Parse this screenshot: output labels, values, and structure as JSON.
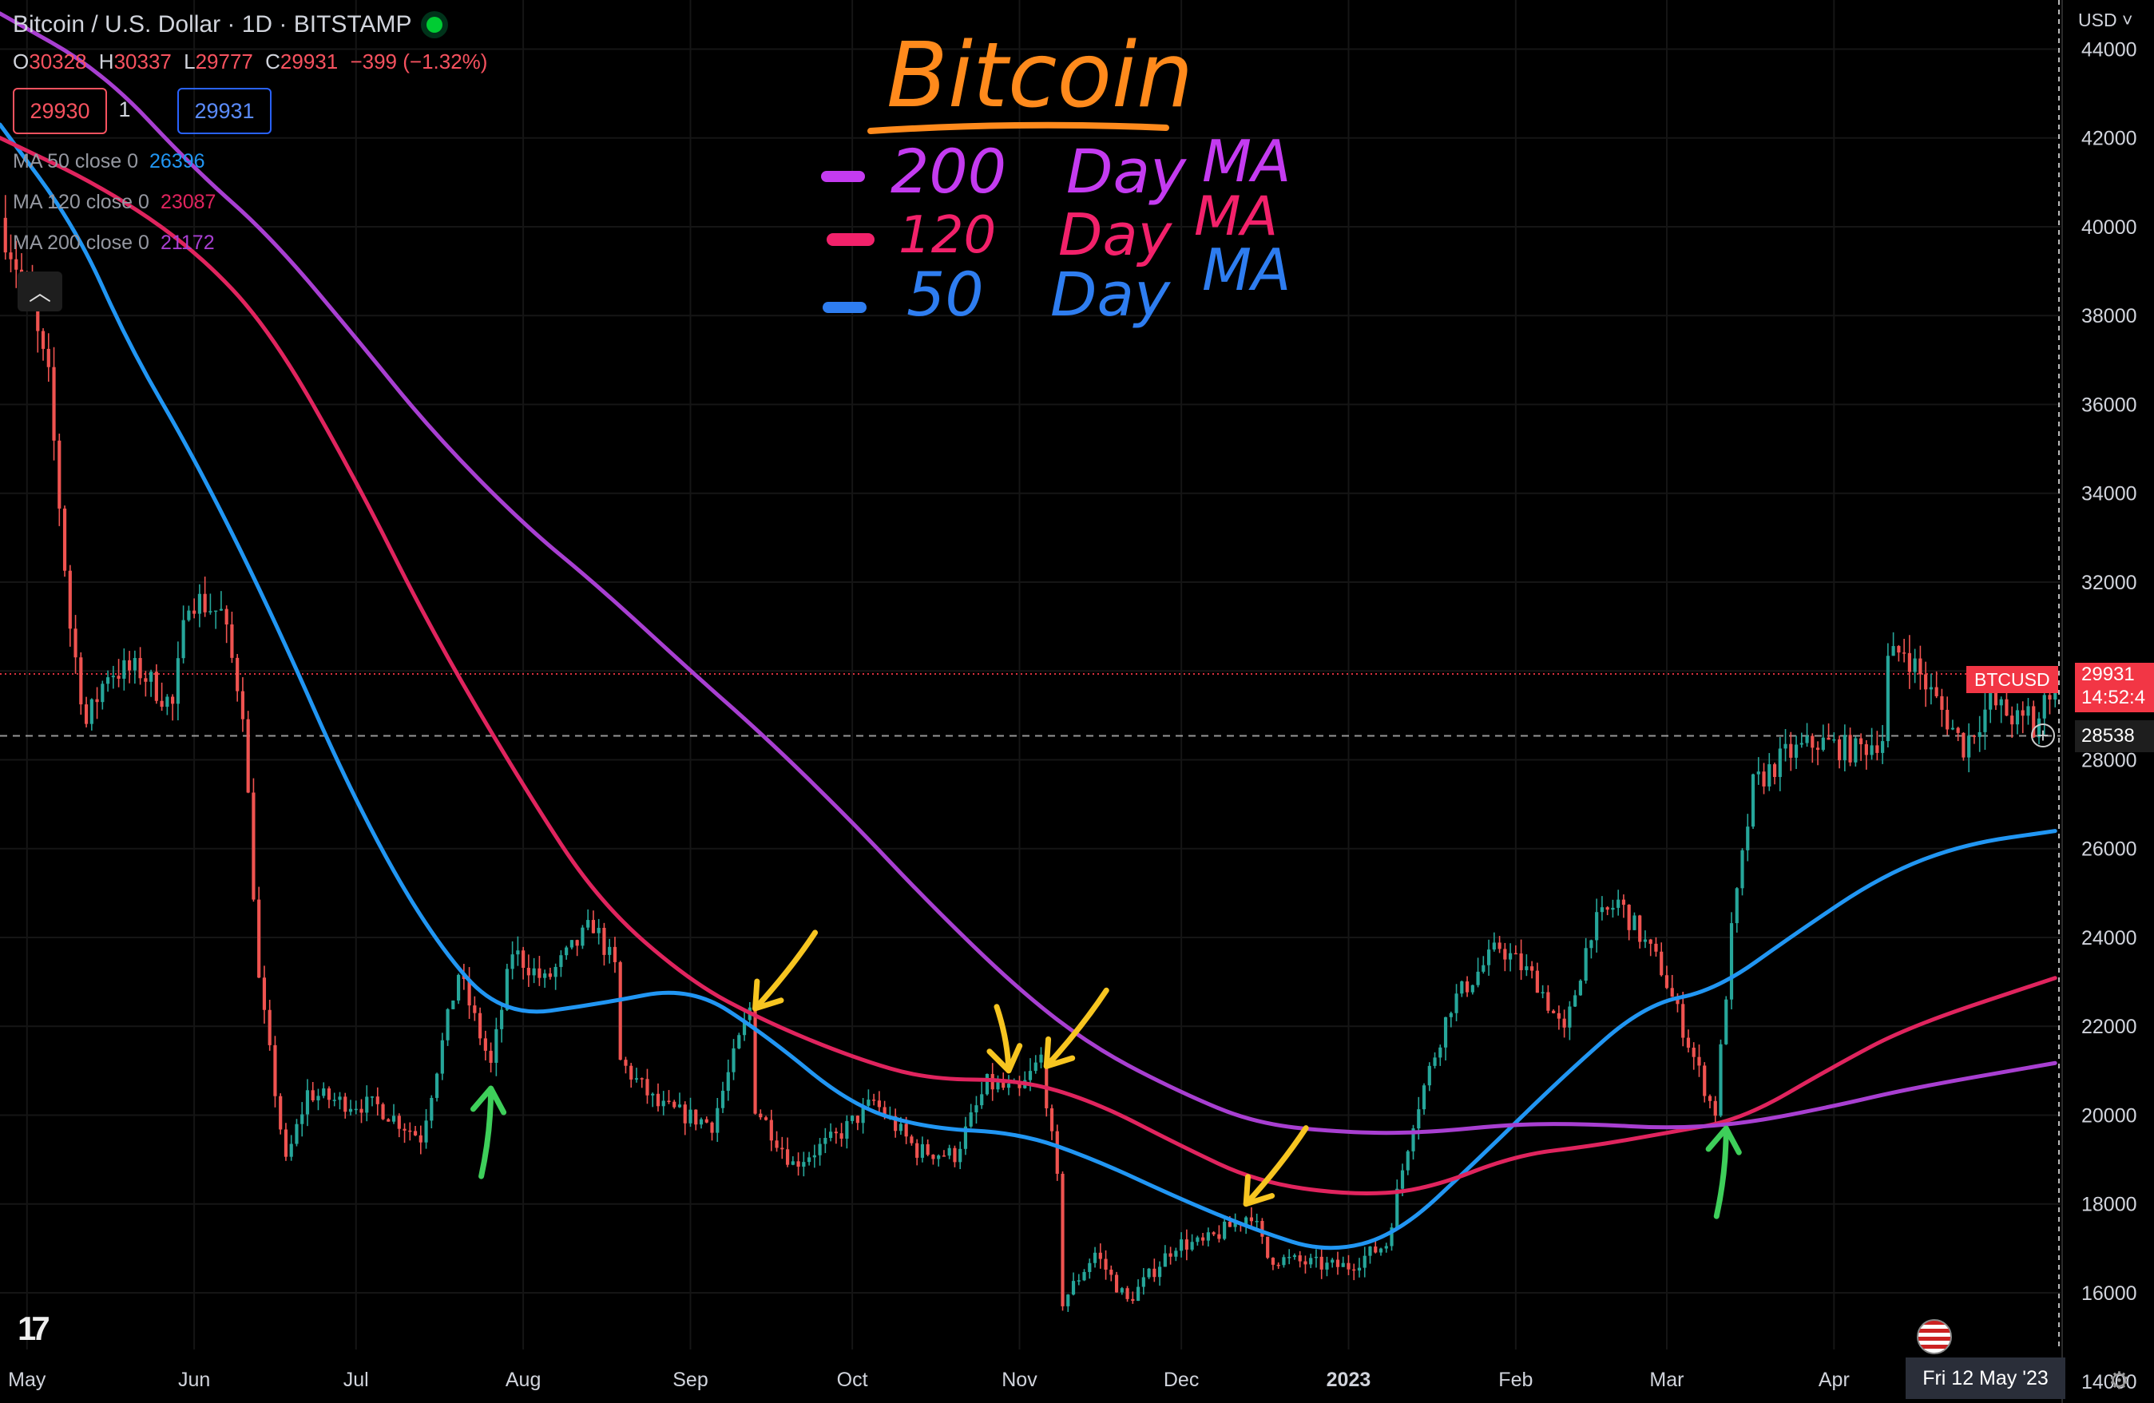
{
  "header": {
    "symbol_title": "Bitcoin / U.S. Dollar · 1D · BITSTAMP",
    "ohlc": {
      "o_label": "O",
      "o": "30328",
      "h_label": "H",
      "h": "30337",
      "l_label": "L",
      "l": "29777",
      "c_label": "C",
      "c": "29931",
      "change": "−399 (−1.32%)"
    },
    "bid": "29930",
    "qty": "1",
    "ask": "29931",
    "indicators": [
      {
        "label": "MA 50 close 0",
        "value": "26396",
        "color": "#2196f3"
      },
      {
        "label": "MA 120 close 0",
        "value": "23087",
        "color": "#e91e63"
      },
      {
        "label": "MA 200 close 0",
        "value": "21172",
        "color": "#9c27b0"
      }
    ],
    "collapse_icon": "chevron-up-icon"
  },
  "annotations": {
    "title": "Bitcoin",
    "legend": [
      {
        "period": "200",
        "word": "Day",
        "ma": "MA",
        "color": "#c43bf0"
      },
      {
        "period": "120",
        "word": "Day",
        "ma": "MA",
        "color": "#f2216a"
      },
      {
        "period": "50",
        "word": "Day",
        "ma": "MA",
        "color": "#2e7df0"
      }
    ],
    "colors": {
      "title": "#ff8a1c",
      "yellow_arrow": "#f7c520",
      "green_arrow": "#3ecf5a"
    }
  },
  "price_scale": {
    "currency": "USD",
    "currency_icon": "chevron-down-icon",
    "last_symbol": "BTCUSD",
    "last_price": "29931",
    "countdown": "14:52:4",
    "crosshair_price": "28538",
    "crosshair_icon": "plus-circle-icon"
  },
  "time_scale": {
    "crosshair_date": "Fri 12 May '23",
    "settings_icon": "gear-icon",
    "flag_icon": "us-flag-icon"
  },
  "colors": {
    "up": "#26a69a",
    "down": "#ef5350",
    "ma50": "#2196f3",
    "ma120": "#e0245e",
    "ma200": "#a83fd1",
    "bg": "#000000"
  },
  "chart_data": {
    "type": "candlestick",
    "x_unit": "date",
    "y_unit": "USD",
    "ylim": [
      13500,
      45500
    ],
    "y_ticks": [
      14000,
      16000,
      18000,
      20000,
      22000,
      24000,
      26000,
      28000,
      30000,
      32000,
      34000,
      36000,
      38000,
      40000,
      42000,
      44000
    ],
    "x_ticks": [
      {
        "date": "2022-05-01",
        "label": "May"
      },
      {
        "date": "2022-06-01",
        "label": "Jun"
      },
      {
        "date": "2022-07-01",
        "label": "Jul"
      },
      {
        "date": "2022-08-01",
        "label": "Aug"
      },
      {
        "date": "2022-09-01",
        "label": "Sep"
      },
      {
        "date": "2022-10-01",
        "label": "Oct"
      },
      {
        "date": "2022-11-01",
        "label": "Nov"
      },
      {
        "date": "2022-12-01",
        "label": "Dec"
      },
      {
        "date": "2023-01-01",
        "label": "2023"
      },
      {
        "date": "2023-02-01",
        "label": "Feb"
      },
      {
        "date": "2023-03-01",
        "label": "Mar"
      },
      {
        "date": "2023-04-01",
        "label": "Apr"
      }
    ],
    "x_range": [
      "2022-04-26",
      "2023-05-13"
    ],
    "price_path": [
      [
        "2022-04-26",
        40200
      ],
      [
        "2022-05-01",
        38500
      ],
      [
        "2022-05-05",
        36500
      ],
      [
        "2022-05-09",
        31000
      ],
      [
        "2022-05-12",
        28800
      ],
      [
        "2022-05-16",
        30000
      ],
      [
        "2022-05-22",
        30000
      ],
      [
        "2022-05-28",
        29200
      ],
      [
        "2022-05-31",
        31700
      ],
      [
        "2022-06-06",
        31300
      ],
      [
        "2022-06-10",
        29200
      ],
      [
        "2022-06-13",
        23000
      ],
      [
        "2022-06-18",
        18900
      ],
      [
        "2022-06-22",
        20500
      ],
      [
        "2022-06-28",
        20300
      ],
      [
        "2022-07-05",
        20200
      ],
      [
        "2022-07-13",
        19500
      ],
      [
        "2022-07-20",
        23200
      ],
      [
        "2022-07-26",
        21100
      ],
      [
        "2022-07-30",
        23700
      ],
      [
        "2022-08-05",
        23000
      ],
      [
        "2022-08-14",
        24300
      ],
      [
        "2022-08-18",
        23300
      ],
      [
        "2022-08-19",
        21200
      ],
      [
        "2022-08-26",
        20200
      ],
      [
        "2022-09-05",
        19800
      ],
      [
        "2022-09-12",
        22400
      ],
      [
        "2022-09-13",
        20200
      ],
      [
        "2022-09-20",
        18900
      ],
      [
        "2022-09-28",
        19500
      ],
      [
        "2022-10-05",
        20300
      ],
      [
        "2022-10-13",
        19200
      ],
      [
        "2022-10-20",
        19100
      ],
      [
        "2022-10-26",
        20700
      ],
      [
        "2022-11-01",
        20500
      ],
      [
        "2022-11-05",
        21300
      ],
      [
        "2022-11-08",
        18500
      ],
      [
        "2022-11-09",
        15800
      ],
      [
        "2022-11-15",
        16900
      ],
      [
        "2022-11-21",
        15800
      ],
      [
        "2022-11-30",
        17100
      ],
      [
        "2022-12-05",
        17100
      ],
      [
        "2022-12-14",
        17800
      ],
      [
        "2022-12-17",
        16800
      ],
      [
        "2022-12-28",
        16600
      ],
      [
        "2023-01-01",
        16600
      ],
      [
        "2023-01-08",
        17100
      ],
      [
        "2023-01-13",
        19900
      ],
      [
        "2023-01-20",
        22500
      ],
      [
        "2023-01-29",
        23800
      ],
      [
        "2023-02-05",
        23000
      ],
      [
        "2023-02-10",
        21800
      ],
      [
        "2023-02-15",
        24200
      ],
      [
        "2023-02-20",
        24800
      ],
      [
        "2023-02-28",
        23300
      ],
      [
        "2023-03-03",
        22300
      ],
      [
        "2023-03-09",
        20300
      ],
      [
        "2023-03-10",
        20100
      ],
      [
        "2023-03-13",
        24100
      ],
      [
        "2023-03-17",
        27400
      ],
      [
        "2023-03-23",
        28100
      ],
      [
        "2023-03-29",
        28400
      ],
      [
        "2023-04-05",
        28200
      ],
      [
        "2023-04-10",
        28500
      ],
      [
        "2023-04-11",
        30200
      ],
      [
        "2023-04-14",
        30500
      ],
      [
        "2023-04-20",
        29300
      ],
      [
        "2023-04-25",
        28300
      ],
      [
        "2023-04-30",
        29300
      ],
      [
        "2023-05-06",
        28800
      ],
      [
        "2023-05-07",
        29100
      ],
      [
        "2023-05-08",
        28600
      ],
      [
        "2023-05-12",
        29931
      ]
    ],
    "series": [
      {
        "name": "MA 50 close 0",
        "color": "#2196f3",
        "points": [
          [
            "2022-04-26",
            42300
          ],
          [
            "2022-05-10",
            40000
          ],
          [
            "2022-05-20",
            37300
          ],
          [
            "2022-06-01",
            34800
          ],
          [
            "2022-06-15",
            31400
          ],
          [
            "2022-07-01",
            27000
          ],
          [
            "2022-07-15",
            24000
          ],
          [
            "2022-07-28",
            22200
          ],
          [
            "2022-08-15",
            22500
          ],
          [
            "2022-09-01",
            22900
          ],
          [
            "2022-09-15",
            21800
          ],
          [
            "2022-10-01",
            20200
          ],
          [
            "2022-10-15",
            19700
          ],
          [
            "2022-11-01",
            19600
          ],
          [
            "2022-11-15",
            19000
          ],
          [
            "2022-12-01",
            18100
          ],
          [
            "2022-12-15",
            17400
          ],
          [
            "2022-12-28",
            16900
          ],
          [
            "2023-01-10",
            17300
          ],
          [
            "2023-01-25",
            19000
          ],
          [
            "2023-02-10",
            20900
          ],
          [
            "2023-02-25",
            22500
          ],
          [
            "2023-03-10",
            22800
          ],
          [
            "2023-03-25",
            24100
          ],
          [
            "2023-04-10",
            25400
          ],
          [
            "2023-04-25",
            26100
          ],
          [
            "2023-05-12",
            26396
          ]
        ]
      },
      {
        "name": "MA 120 close 0",
        "color": "#e0245e",
        "points": [
          [
            "2022-04-26",
            42000
          ],
          [
            "2022-05-15",
            40900
          ],
          [
            "2022-06-01",
            39500
          ],
          [
            "2022-06-15",
            37700
          ],
          [
            "2022-07-01",
            34300
          ],
          [
            "2022-07-15",
            30900
          ],
          [
            "2022-08-01",
            27400
          ],
          [
            "2022-08-15",
            24800
          ],
          [
            "2022-09-01",
            23000
          ],
          [
            "2022-09-15",
            22100
          ],
          [
            "2022-10-01",
            21300
          ],
          [
            "2022-10-15",
            20800
          ],
          [
            "2022-11-01",
            20800
          ],
          [
            "2022-11-15",
            20300
          ],
          [
            "2022-12-01",
            19300
          ],
          [
            "2022-12-15",
            18500
          ],
          [
            "2023-01-01",
            18200
          ],
          [
            "2023-01-15",
            18300
          ],
          [
            "2023-02-01",
            19100
          ],
          [
            "2023-02-15",
            19300
          ],
          [
            "2023-03-01",
            19600
          ],
          [
            "2023-03-15",
            19900
          ],
          [
            "2023-04-01",
            21100
          ],
          [
            "2023-04-15",
            22000
          ],
          [
            "2023-05-12",
            23087
          ]
        ]
      },
      {
        "name": "MA 200 close 0",
        "color": "#a83fd1",
        "points": [
          [
            "2022-04-26",
            44800
          ],
          [
            "2022-05-15",
            43500
          ],
          [
            "2022-06-01",
            41300
          ],
          [
            "2022-06-15",
            39800
          ],
          [
            "2022-07-01",
            37500
          ],
          [
            "2022-07-15",
            35400
          ],
          [
            "2022-08-01",
            33300
          ],
          [
            "2022-08-15",
            31900
          ],
          [
            "2022-09-01",
            30000
          ],
          [
            "2022-09-15",
            28500
          ],
          [
            "2022-10-01",
            26600
          ],
          [
            "2022-10-15",
            24800
          ],
          [
            "2022-11-01",
            22800
          ],
          [
            "2022-11-15",
            21500
          ],
          [
            "2022-12-01",
            20500
          ],
          [
            "2022-12-15",
            19800
          ],
          [
            "2023-01-01",
            19600
          ],
          [
            "2023-01-15",
            19600
          ],
          [
            "2023-02-01",
            19800
          ],
          [
            "2023-02-15",
            19800
          ],
          [
            "2023-03-01",
            19700
          ],
          [
            "2023-03-15",
            19800
          ],
          [
            "2023-04-01",
            20200
          ],
          [
            "2023-04-15",
            20600
          ],
          [
            "2023-05-12",
            21172
          ]
        ]
      }
    ],
    "horizontal_lines": [
      {
        "price": 29931,
        "style": "dotted",
        "color": "#f23645"
      },
      {
        "price": 28538,
        "style": "dashed",
        "color": "#c9c9c9"
      }
    ],
    "crosshair_date": "2023-05-12",
    "arrows": [
      {
        "date": "2022-09-13",
        "price": 22400,
        "color": "yellow",
        "direction": "down-left"
      },
      {
        "date": "2022-10-30",
        "price": 21000,
        "color": "yellow",
        "direction": "down"
      },
      {
        "date": "2022-11-06",
        "price": 21100,
        "color": "yellow",
        "direction": "down-left"
      },
      {
        "date": "2022-12-13",
        "price": 18000,
        "color": "yellow",
        "direction": "down-left"
      },
      {
        "date": "2022-07-26",
        "price": 20600,
        "color": "green",
        "direction": "up"
      },
      {
        "date": "2023-03-12",
        "price": 19700,
        "color": "green",
        "direction": "up"
      }
    ]
  }
}
